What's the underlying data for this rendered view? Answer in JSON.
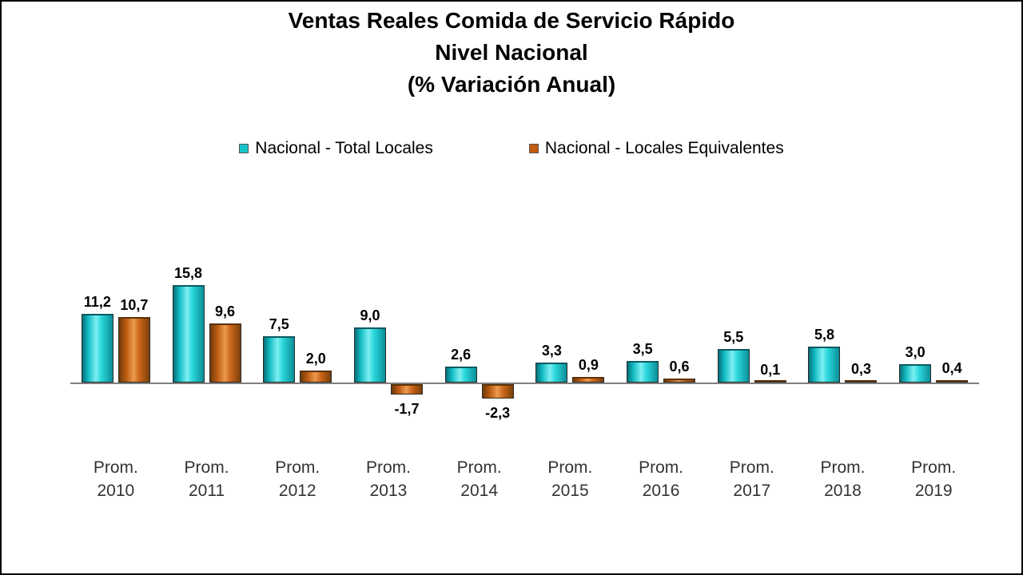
{
  "title": {
    "line1": "Ventas Reales Comida de Servicio Rápido",
    "line2": "Nivel Nacional",
    "line3": "(% Variación Anual)"
  },
  "legend": [
    {
      "label": "Nacional - Total Locales",
      "color": "#17C3CB"
    },
    {
      "label": "Nacional - Locales Equivalentes",
      "color": "#C55A11"
    }
  ],
  "chart_data": {
    "type": "bar",
    "title": "Ventas Reales Comida de Servicio Rápido - Nivel Nacional (% Variación Anual)",
    "categories": [
      "Prom. 2010",
      "Prom. 2011",
      "Prom. 2012",
      "Prom. 2013",
      "Prom. 2014",
      "Prom. 2015",
      "Prom. 2016",
      "Prom. 2017",
      "Prom. 2018",
      "Prom. 2019"
    ],
    "series": [
      {
        "name": "Nacional - Total Locales",
        "key": "total-locales",
        "color": "#17C3CB",
        "values": [
          11.2,
          15.8,
          7.5,
          9.0,
          2.6,
          3.3,
          3.5,
          5.5,
          5.8,
          3.0
        ],
        "labels": [
          "11,2",
          "15,8",
          "7,5",
          "9,0",
          "2,6",
          "3,3",
          "3,5",
          "5,5",
          "5,8",
          "3,0"
        ]
      },
      {
        "name": "Nacional - Locales Equivalentes",
        "key": "locales-equivalentes",
        "color": "#C55A11",
        "values": [
          10.7,
          9.6,
          2.0,
          -1.7,
          -2.3,
          0.9,
          0.6,
          0.1,
          0.3,
          0.4
        ],
        "labels": [
          "10,7",
          "9,6",
          "2,0",
          "-1,7",
          "-2,3",
          "0,9",
          "0,6",
          "0,1",
          "0,3",
          "0,4"
        ]
      }
    ],
    "xlabel": "",
    "ylabel": "% Variación Anual",
    "ylim": [
      -4,
      18
    ],
    "grid": false,
    "legend_position": "top",
    "value_labels_shown": true,
    "decimal_separator": ","
  }
}
